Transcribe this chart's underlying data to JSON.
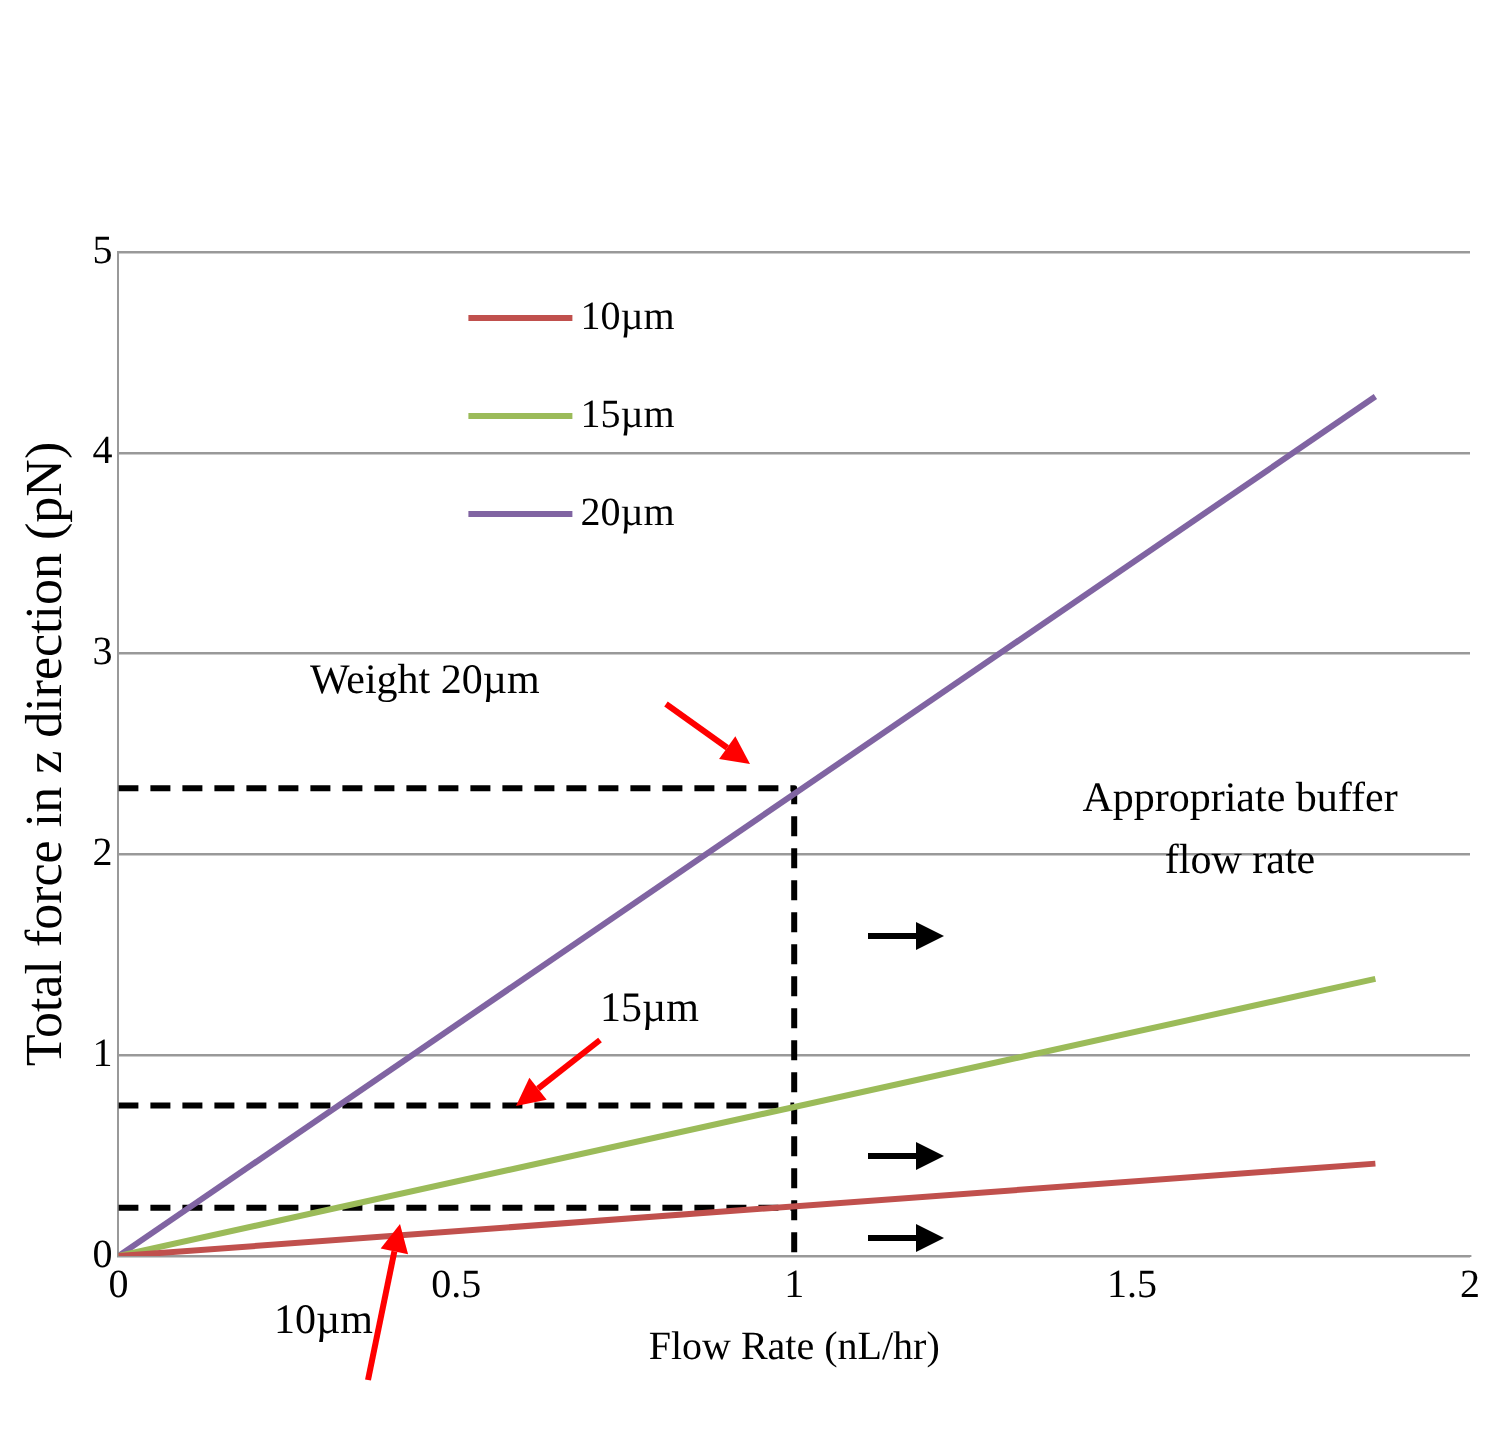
{
  "chart_data": {
    "type": "line",
    "xlabel": "Flow Rate (nL/hr)",
    "ylabel": "Total force in z direction (pN)",
    "xlim": [
      0,
      2
    ],
    "xticks": [
      0,
      0.5,
      1,
      1.5,
      2
    ],
    "ylim": [
      0,
      5
    ],
    "yticks": [
      0,
      1,
      2,
      3,
      4,
      5
    ],
    "grid": "y",
    "legend": "top left",
    "marker": "none",
    "series": [
      {
        "name": "10µm",
        "color": "#c0504d",
        "x": [
          0,
          1.86
        ],
        "values": [
          0,
          0.46
        ]
      },
      {
        "name": "15µm",
        "color": "#9bbb59",
        "x": [
          0,
          1.86
        ],
        "values": [
          0,
          1.38
        ]
      },
      {
        "name": "20µm",
        "color": "#8064a2",
        "x": [
          0,
          1.86
        ],
        "values": [
          0,
          4.28
        ]
      },
      {
        "color": "#000000",
        "line_style": "dashed",
        "x": [
          0,
          1,
          1
        ],
        "values": [
          2.33,
          2.33,
          0
        ]
      },
      {
        "color": "#000000",
        "line_style": "dashed",
        "x": [
          0,
          1
        ],
        "values": [
          0.75,
          0.75
        ]
      },
      {
        "color": "#000000",
        "line_style": "dashed",
        "x": [
          0,
          1
        ],
        "values": [
          0.24,
          0.24
        ]
      }
    ],
    "annotations": [
      "Weight 20µm",
      "15µm",
      "10µm",
      "Appropriate buffer flow rate"
    ]
  }
}
